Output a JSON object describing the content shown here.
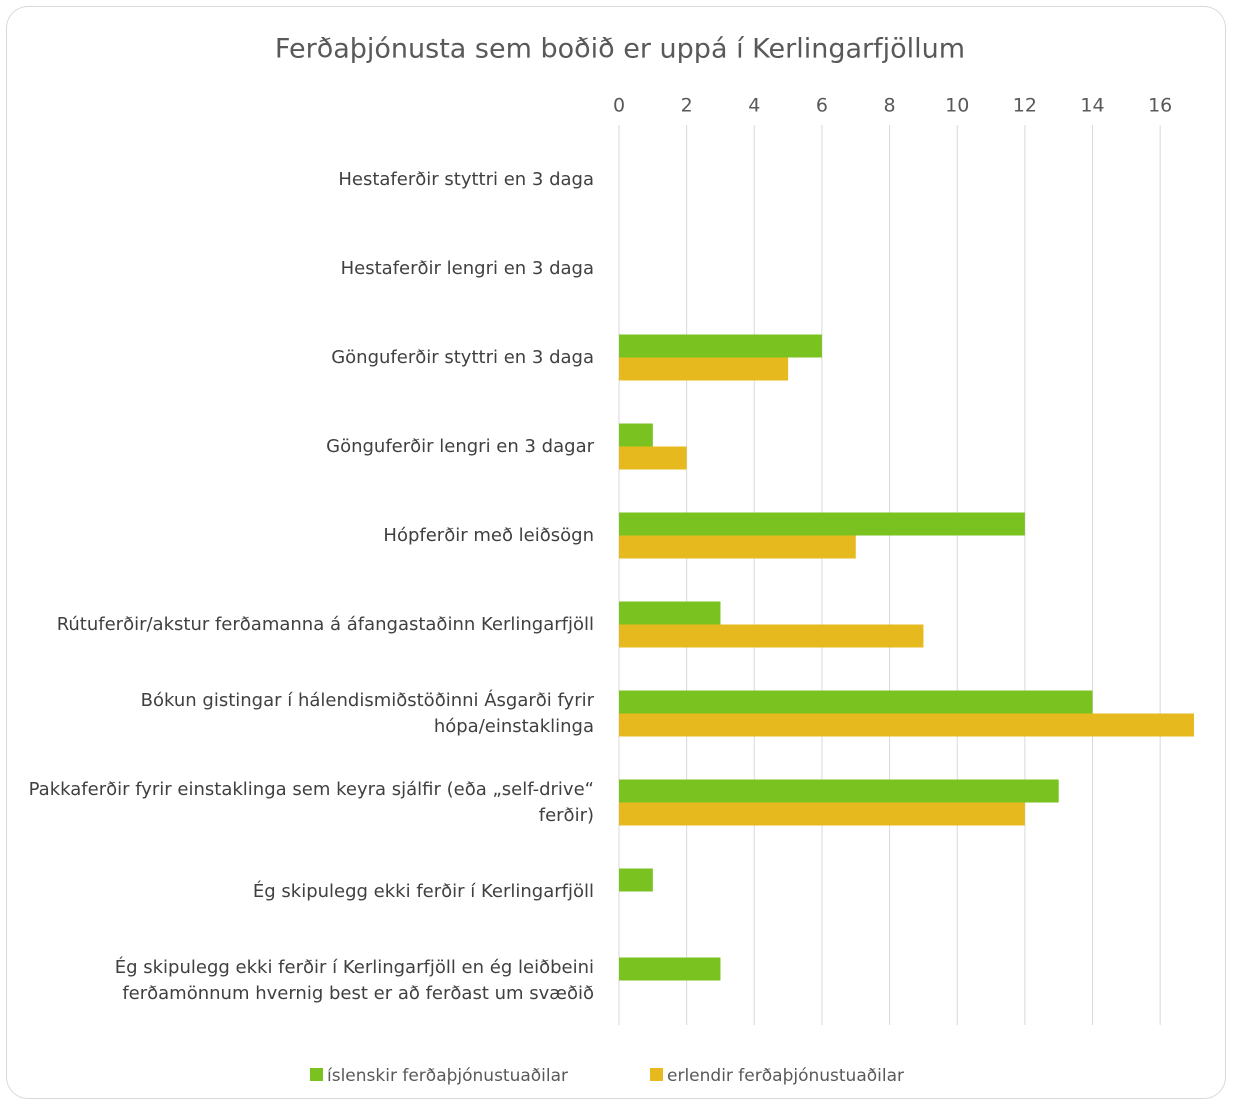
{
  "chart_data": {
    "type": "barh",
    "title": "Ferðaþjónusta sem boðið er uppá í Kerlingarfjöllum",
    "categories": [
      "Hestaferðir styttri en 3 daga",
      "Hestaferðir lengri en 3 daga",
      "Gönguferðir styttri en 3 daga",
      "Gönguferðir lengri en 3 dagar",
      "Hópferðir með leiðsögn",
      "Rútuferðir/akstur ferðamanna á áfangastaðinn Kerlingarfjöll",
      "Bókun gistingar í hálendismiðstöðinni Ásgarði fyrir hópa/einstaklinga",
      "Pakkaferðir fyrir einstaklinga sem keyra sjálfir (eða „self-drive“ ferðir)",
      "Ég skipulegg ekki ferðir í Kerlingarfjöll",
      "Ég skipulegg ekki ferðir í Kerlingarfjöll en ég leiðbeini ferðamönnum hvernig best er að ferðast um svæðið"
    ],
    "series": [
      {
        "name": "íslenskir ferðaþjónustuaðilar",
        "color": "#7ac21f",
        "values": [
          0,
          0,
          6,
          1,
          12,
          3,
          14,
          13,
          1,
          3
        ]
      },
      {
        "name": "erlendir ferðaþjónustuaðilar",
        "color": "#e6b91e",
        "values": [
          0,
          0,
          5,
          2,
          7,
          9,
          17,
          12,
          0,
          0
        ]
      }
    ],
    "xlim": [
      0,
      17
    ],
    "xticks": [
      0,
      2,
      4,
      6,
      8,
      10,
      12,
      14,
      16
    ],
    "grid": true,
    "legend": "bottom"
  }
}
